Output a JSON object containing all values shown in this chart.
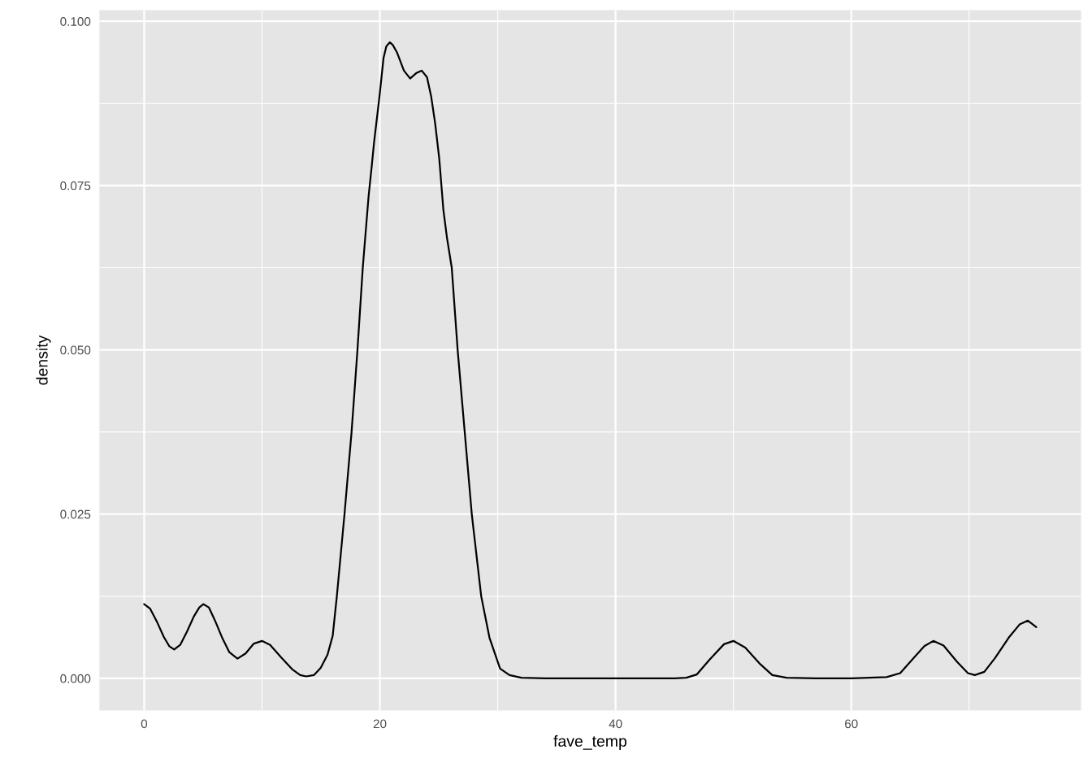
{
  "chart_data": {
    "type": "line",
    "xlabel": "fave_temp",
    "ylabel": "density",
    "xlim": [
      -3.8,
      79.5
    ],
    "ylim": [
      -0.0049,
      0.1017
    ],
    "xticks": [
      0,
      20,
      40,
      60
    ],
    "yticks": [
      {
        "value": 0,
        "label": "0.000"
      },
      {
        "value": 0.025,
        "label": "0.025"
      },
      {
        "value": 0.05,
        "label": "0.050"
      },
      {
        "value": 0.075,
        "label": "0.075"
      },
      {
        "value": 0.1,
        "label": "0.100"
      }
    ],
    "grid": true,
    "marker": "none",
    "line_style": "solid",
    "series": [
      {
        "color": "#000000",
        "x": [
          0,
          0.51,
          1.09,
          1.67,
          2.13,
          2.55,
          3.06,
          3.63,
          4.21,
          4.68,
          5.02,
          5.49,
          6.06,
          6.64,
          7.22,
          7.92,
          8.61,
          9.31,
          10.0,
          10.69,
          11.62,
          12.55,
          13.24,
          13.75,
          14.4,
          14.98,
          15.56,
          16.0,
          16.35,
          17.0,
          17.6,
          18.1,
          18.55,
          18.8,
          19.05,
          19.3,
          19.51,
          19.97,
          20.31,
          20.55,
          20.85,
          21.1,
          21.47,
          22.04,
          22.57,
          23.08,
          23.55,
          24.0,
          24.35,
          24.69,
          25.04,
          25.39,
          25.7,
          26.1,
          26.6,
          27.2,
          27.8,
          28.6,
          29.3,
          30.2,
          31.0,
          32.0,
          34.0,
          40.0,
          45.0,
          46.0,
          46.9,
          48.0,
          49.2,
          50.0,
          51.0,
          52.2,
          53.3,
          54.5,
          57.0,
          60.0,
          63.0,
          64.15,
          65.3,
          66.2,
          66.96,
          67.83,
          68.99,
          69.9,
          70.48,
          71.29,
          72.2,
          73.36,
          74.28,
          74.98,
          75.7
        ],
        "values": [
          0.0113,
          0.0106,
          0.0086,
          0.0063,
          0.0049,
          0.0044,
          0.0051,
          0.0071,
          0.0094,
          0.0108,
          0.0113,
          0.0108,
          0.0086,
          0.0061,
          0.004,
          0.003,
          0.0038,
          0.0053,
          0.0057,
          0.0051,
          0.0032,
          0.0014,
          0.0005,
          0.0003,
          0.0005,
          0.0016,
          0.0036,
          0.0065,
          0.0125,
          0.025,
          0.0375,
          0.05,
          0.0625,
          0.068,
          0.0735,
          0.0778,
          0.0816,
          0.0886,
          0.0944,
          0.0962,
          0.0968,
          0.0964,
          0.0952,
          0.0925,
          0.0913,
          0.0921,
          0.0925,
          0.0915,
          0.0886,
          0.0845,
          0.0791,
          0.0713,
          0.067,
          0.0625,
          0.05,
          0.0375,
          0.025,
          0.0125,
          0.0062,
          0.0015,
          0.0005,
          0.0001,
          0.0,
          0.0,
          0.0,
          0.0001,
          0.0006,
          0.0029,
          0.0052,
          0.0057,
          0.0047,
          0.0023,
          0.0005,
          0.0001,
          0.0,
          0.0,
          0.0002,
          0.0008,
          0.0031,
          0.0049,
          0.0057,
          0.005,
          0.0025,
          0.0008,
          0.0005,
          0.001,
          0.0031,
          0.0062,
          0.0082,
          0.0088,
          0.0078
        ]
      }
    ]
  }
}
